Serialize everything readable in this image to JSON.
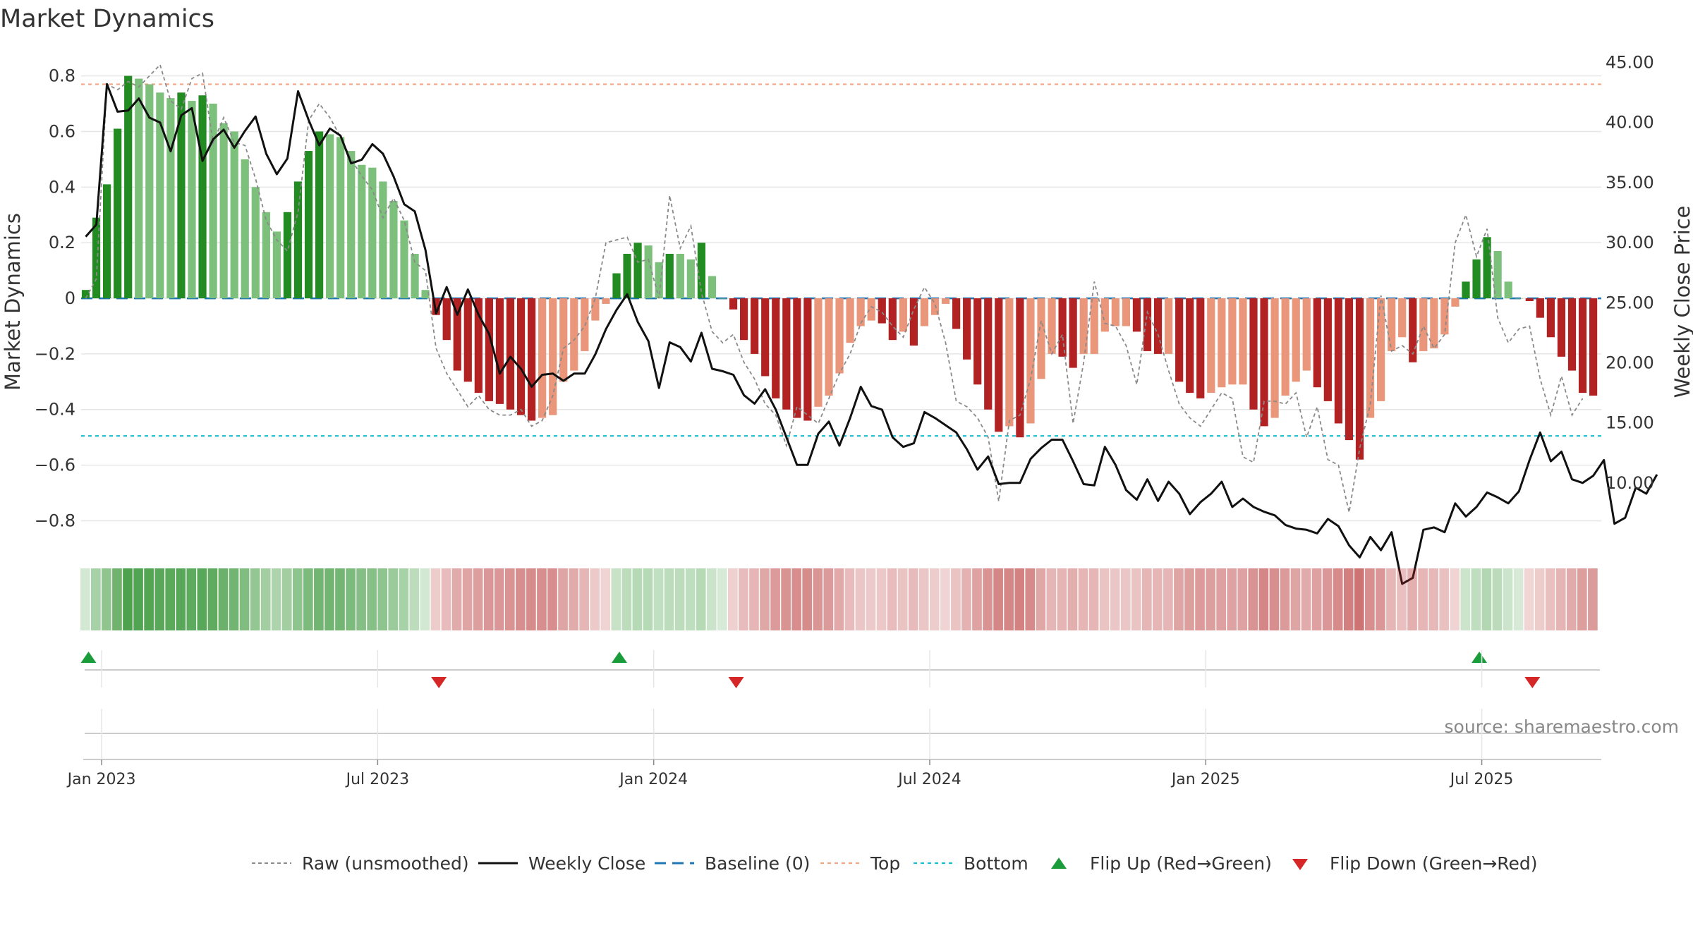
{
  "title": "Market Dynamics",
  "source": "source: sharemaestro.com",
  "chart_data": {
    "type": "bar",
    "title": "Market Dynamics",
    "ylabel_left": "Market Dynamics",
    "ylabel_right": "Weekly Close Price",
    "ylim_left": [
      -0.88,
      0.87
    ],
    "ylim_right": [
      5.0,
      45.5
    ],
    "left_ticks": [
      0.8,
      0.6,
      0.4,
      0.2,
      0,
      -0.2,
      -0.4,
      -0.6,
      -0.8
    ],
    "left_tick_labels": [
      "0.8",
      "0.6",
      "0.4",
      "0.2",
      "0",
      "−0.2",
      "−0.4",
      "−0.6",
      "−0.8"
    ],
    "right_ticks": [
      45,
      40,
      35,
      30,
      25,
      20,
      15,
      10
    ],
    "right_tick_labels": [
      "45.00",
      "40.00",
      "35.00",
      "30.00",
      "25.00",
      "20.00",
      "15.00",
      "10.00"
    ],
    "x_ticks": [
      "Jan 2023",
      "Jul 2023",
      "Jan 2024",
      "Jul 2024",
      "Jan 2025",
      "Jul 2025"
    ],
    "x_tick_week_index": [
      1.5,
      27.5,
      53.5,
      79.5,
      105.5,
      131.5
    ],
    "levels": {
      "baseline": 0,
      "top": 0.77,
      "bottom": -0.495
    },
    "values": [
      0.03,
      0.29,
      0.41,
      0.61,
      0.8,
      0.79,
      0.77,
      0.74,
      0.72,
      0.74,
      0.71,
      0.73,
      0.7,
      0.63,
      0.6,
      0.5,
      0.4,
      0.31,
      0.24,
      0.31,
      0.42,
      0.53,
      0.6,
      0.59,
      0.58,
      0.53,
      0.48,
      0.47,
      0.42,
      0.35,
      0.28,
      0.16,
      0.03,
      -0.06,
      -0.15,
      -0.26,
      -0.3,
      -0.34,
      -0.37,
      -0.38,
      -0.4,
      -0.42,
      -0.44,
      -0.43,
      -0.42,
      -0.3,
      -0.26,
      -0.19,
      -0.08,
      -0.02,
      0.09,
      0.16,
      0.2,
      0.19,
      0.13,
      0.16,
      0.16,
      0.14,
      0.2,
      0.08,
      0,
      -0.04,
      -0.15,
      -0.2,
      -0.28,
      -0.36,
      -0.4,
      -0.43,
      -0.44,
      -0.39,
      -0.35,
      -0.27,
      -0.16,
      -0.1,
      -0.08,
      -0.09,
      -0.15,
      -0.12,
      -0.17,
      -0.1,
      -0.06,
      -0.02,
      -0.11,
      -0.22,
      -0.31,
      -0.4,
      -0.48,
      -0.46,
      -0.5,
      -0.45,
      -0.29,
      -0.2,
      -0.21,
      -0.25,
      -0.2,
      -0.2,
      -0.12,
      -0.1,
      -0.1,
      -0.12,
      -0.19,
      -0.2,
      -0.2,
      -0.3,
      -0.34,
      -0.36,
      -0.34,
      -0.32,
      -0.31,
      -0.31,
      -0.4,
      -0.46,
      -0.43,
      -0.35,
      -0.3,
      -0.26,
      -0.32,
      -0.37,
      -0.45,
      -0.51,
      -0.58,
      -0.43,
      -0.37,
      -0.19,
      -0.14,
      -0.23,
      -0.19,
      -0.18,
      -0.13,
      -0.03,
      0.06,
      0.14,
      0.22,
      0.17,
      0.06,
      0,
      -0.01,
      -0.07,
      -0.14,
      -0.21,
      -0.26,
      -0.34,
      -0.35
    ],
    "raw": [
      0,
      0.07,
      0.77,
      0.75,
      0.78,
      0.76,
      0.8,
      0.84,
      0.71,
      0.68,
      0.79,
      0.81,
      0.56,
      0.65,
      0.56,
      0.55,
      0.43,
      0.28,
      0.21,
      0.17,
      0.31,
      0.64,
      0.7,
      0.65,
      0.58,
      0.5,
      0.44,
      0.39,
      0.29,
      0.36,
      0.28,
      0.13,
      0.1,
      -0.18,
      -0.27,
      -0.33,
      -0.39,
      -0.35,
      -0.4,
      -0.42,
      -0.42,
      -0.4,
      -0.46,
      -0.44,
      -0.35,
      -0.18,
      -0.15,
      -0.1,
      0.0,
      0.2,
      0.21,
      0.22,
      0.13,
      0.14,
      0.0,
      0.37,
      0.18,
      0.26,
      0.02,
      -0.12,
      -0.16,
      -0.13,
      -0.23,
      -0.29,
      -0.38,
      -0.42,
      -0.53,
      -0.39,
      -0.42,
      -0.45,
      -0.36,
      -0.27,
      -0.2,
      -0.09,
      -0.03,
      -0.05,
      -0.1,
      -0.14,
      -0.04,
      0.04,
      -0.02,
      -0.16,
      -0.37,
      -0.39,
      -0.43,
      -0.5,
      -0.73,
      -0.44,
      -0.42,
      -0.29,
      -0.08,
      -0.2,
      -0.13,
      -0.45,
      -0.23,
      0.06,
      -0.09,
      -0.1,
      -0.17,
      -0.31,
      -0.05,
      -0.13,
      -0.26,
      -0.38,
      -0.43,
      -0.46,
      -0.4,
      -0.34,
      -0.36,
      -0.57,
      -0.59,
      -0.37,
      -0.37,
      -0.38,
      -0.34,
      -0.5,
      -0.39,
      -0.58,
      -0.6,
      -0.77,
      -0.54,
      -0.38,
      0.01,
      -0.19,
      -0.17,
      -0.2,
      -0.1,
      -0.18,
      -0.13,
      0.2,
      0.3,
      0.15,
      0.25,
      -0.07,
      -0.16,
      -0.11,
      -0.1,
      -0.29,
      -0.42,
      -0.28,
      -0.42,
      -0.36
    ],
    "weekly_close": [
      30.5,
      31.5,
      43.2,
      40.9,
      41,
      42,
      40.4,
      40,
      37.6,
      40.6,
      41.2,
      36.8,
      38.6,
      39.4,
      37.9,
      39.3,
      40.5,
      37.4,
      35.7,
      37,
      42.6,
      40.2,
      38.1,
      39.5,
      38.9,
      36.6,
      36.9,
      38.2,
      37.4,
      35.5,
      33.2,
      32.6,
      29.4,
      24.1,
      26.3,
      24,
      26.1,
      24,
      22.4,
      19.1,
      20.5,
      19.5,
      18,
      19,
      19.1,
      18.5,
      19.1,
      19.1,
      20.7,
      22.8,
      24.4,
      25.7,
      23.4,
      21.8,
      17.9,
      21.7,
      21.3,
      20.1,
      22.5,
      19.5,
      19.3,
      19,
      17.3,
      16.6,
      17.8,
      16.1,
      13.8,
      11.5,
      11.5,
      14.1,
      15.1,
      13.1,
      15.4,
      18,
      16.4,
      16.1,
      13.8,
      13,
      13.3,
      15.9,
      15.4,
      14.8,
      14.2,
      12.8,
      11.1,
      12.2,
      9.9,
      10,
      10,
      12,
      12.9,
      13.6,
      13.6,
      11.8,
      9.9,
      9.8,
      13,
      11.5,
      9.4,
      8.6,
      10.3,
      8.5,
      10.1,
      9.1,
      7.4,
      8.4,
      9.1,
      10.1,
      8,
      8.7,
      8,
      7.6,
      7.3,
      6.5,
      6.2,
      6.1,
      5.8,
      7,
      6.4,
      4.8,
      3.8,
      5.5,
      4.4,
      5.9,
      1.6,
      2.1,
      6.1,
      6.3,
      5.9,
      8.3,
      7.2,
      8,
      9.2,
      8.8,
      8.3,
      9.3,
      11.9,
      14.2,
      11.8,
      12.6,
      10.3,
      10,
      10.6,
      11.9,
      6.6,
      7.1,
      9.6,
      9.1,
      10.7
    ],
    "flips": [
      {
        "type": "up",
        "week": 0
      },
      {
        "type": "down",
        "week": 33
      },
      {
        "type": "up",
        "week": 50
      },
      {
        "type": "down",
        "week": 61
      },
      {
        "type": "up",
        "week": 131
      },
      {
        "type": "down",
        "week": 136
      }
    ],
    "colors": {
      "strong_green": "#228b22",
      "light_green": "#7cc07c",
      "strong_red": "#b22222",
      "light_red": "#e9967a",
      "weekly_close": "#111111",
      "raw": "#8a8a8a",
      "baseline": "#1f77b4",
      "top": "#f4a582",
      "bottom": "#17becf",
      "flip_up": "#1a9c3a",
      "flip_down": "#d62728",
      "grid": "#e6e6e6"
    },
    "legend": [
      {
        "label": "Raw (unsmoothed)",
        "icon": "dotted-gray-line"
      },
      {
        "label": "Weekly Close",
        "icon": "solid-black-line"
      },
      {
        "label": "Baseline (0)",
        "icon": "dashed-blue-line"
      },
      {
        "label": "Top",
        "icon": "dotted-orange-line"
      },
      {
        "label": "Bottom",
        "icon": "dotted-cyan-line"
      },
      {
        "label": "Flip Up (Red→Green)",
        "icon": "triangle-up-green"
      },
      {
        "label": "Flip Down (Green→Red)",
        "icon": "triangle-down-red"
      }
    ]
  }
}
